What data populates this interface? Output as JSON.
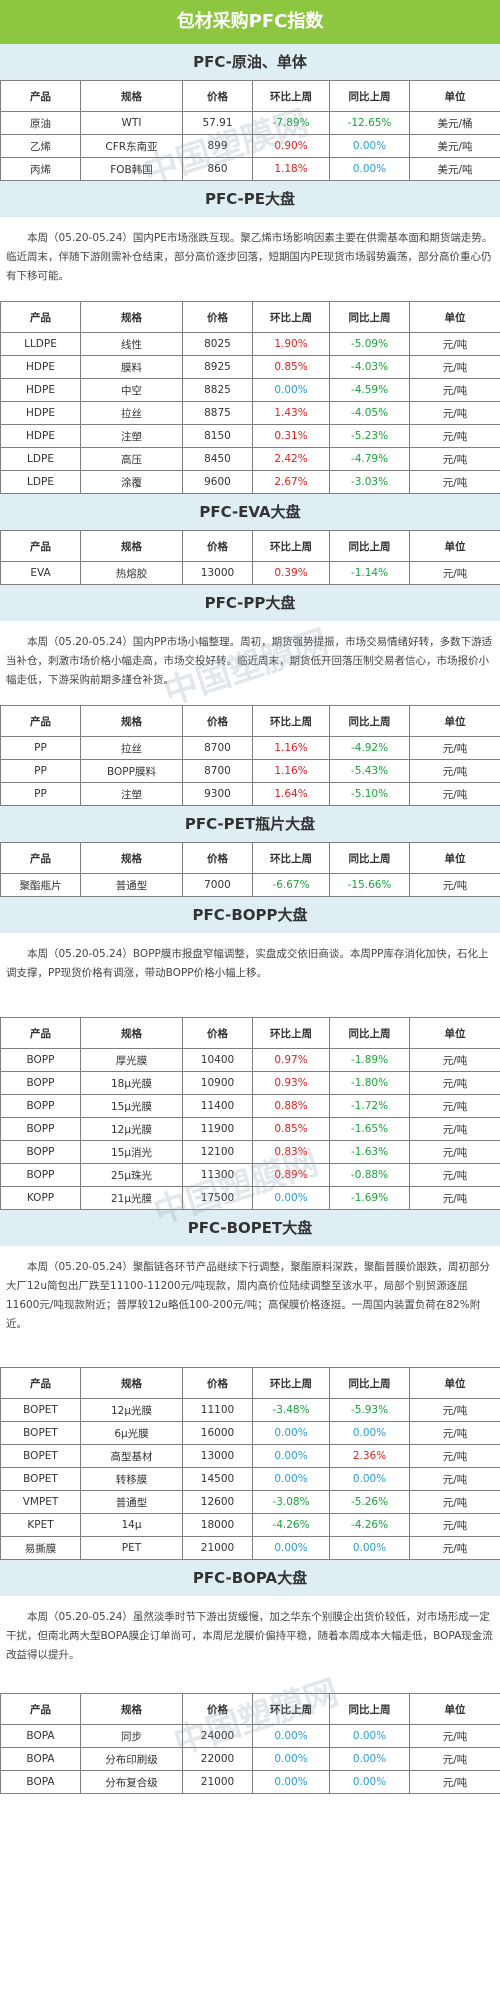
{
  "page_title": "包材采购PFC指数",
  "header": [
    "产品",
    "规格",
    "价格",
    "环比上周",
    "同比上周",
    "单位"
  ],
  "watermark": "中国塑膜网",
  "sections": [
    {
      "title": "PFC-原油、单体",
      "rows": [
        [
          "原油",
          "WTI",
          "57.91",
          "-7.89%",
          "-12.65%",
          "美元/桶"
        ],
        [
          "乙烯",
          "CFR东南亚",
          "899",
          "0.90%",
          "0.00%",
          "美元/吨"
        ],
        [
          "丙烯",
          "FOB韩国",
          "860",
          "1.18%",
          "0.00%",
          "美元/吨"
        ]
      ]
    },
    {
      "title": "PFC-PE大盘",
      "para": "本周（05.20-05.24）国内PE市场涨跌互现。聚乙烯市场影响因素主要在供需基本面和期货端走势。临近周末，伴随下游刚需补仓结束，部分高价逐步回落，短期国内PE现货市场弱势震荡，部分高价重心仍有下移可能。",
      "rows": [
        [
          "LLDPE",
          "线性",
          "8025",
          "1.90%",
          "-5.09%",
          "元/吨"
        ],
        [
          "HDPE",
          "膜料",
          "8925",
          "0.85%",
          "-4.03%",
          "元/吨"
        ],
        [
          "HDPE",
          "中空",
          "8825",
          "0.00%",
          "-4.59%",
          "元/吨"
        ],
        [
          "HDPE",
          "拉丝",
          "8875",
          "1.43%",
          "-4.05%",
          "元/吨"
        ],
        [
          "HDPE",
          "注塑",
          "8150",
          "0.31%",
          "-5.23%",
          "元/吨"
        ],
        [
          "LDPE",
          "高压",
          "8450",
          "2.42%",
          "-4.79%",
          "元/吨"
        ],
        [
          "LDPE",
          "涂覆",
          "9600",
          "2.67%",
          "-3.03%",
          "元/吨"
        ]
      ]
    },
    {
      "title": "PFC-EVA大盘",
      "rows": [
        [
          "EVA",
          "热熔胶",
          "13000",
          "0.39%",
          "-1.14%",
          "元/吨"
        ]
      ]
    },
    {
      "title": "PFC-PP大盘",
      "para": "本周（05.20-05.24）国内PP市场小幅整理。周初，期货强势提振，市场交易情绪好转，多数下游适当补仓，刺激市场价格小幅走高，市场交投好转。临近周末，期货低开回落压制交易者信心，市场报价小幅走低，下游采购前期多謹仓补货。",
      "rows": [
        [
          "PP",
          "拉丝",
          "8700",
          "1.16%",
          "-4.92%",
          "元/吨"
        ],
        [
          "PP",
          "BOPP膜料",
          "8700",
          "1.16%",
          "-5.43%",
          "元/吨"
        ],
        [
          "PP",
          "注塑",
          "9300",
          "1.64%",
          "-5.10%",
          "元/吨"
        ]
      ]
    },
    {
      "title": "PFC-PET瓶片大盘",
      "rows": [
        [
          "聚酯瓶片",
          "普通型",
          "7000",
          "-6.67%",
          "-15.66%",
          "元/吨"
        ]
      ]
    },
    {
      "title": "PFC-BOPP大盘",
      "para": "本周（05.20-05.24）BOPP膜市报盘窄幅调整，实盘成交依旧商谈。本周PP库存消化加快，石化上调支撑，PP现货价格有调涨，带动BOPP价格小幅上移。",
      "rows": [
        [
          "BOPP",
          "厚光膜",
          "10400",
          "0.97%",
          "-1.89%",
          "元/吨"
        ],
        [
          "BOPP",
          "18μ光膜",
          "10900",
          "0.93%",
          "-1.80%",
          "元/吨"
        ],
        [
          "BOPP",
          "15μ光膜",
          "11400",
          "0.88%",
          "-1.72%",
          "元/吨"
        ],
        [
          "BOPP",
          "12μ光膜",
          "11900",
          "0.85%",
          "-1.65%",
          "元/吨"
        ],
        [
          "BOPP",
          "15μ消光",
          "12100",
          "0.83%",
          "-1.63%",
          "元/吨"
        ],
        [
          "BOPP",
          "25μ珠光",
          "11300",
          "0.89%",
          "-0.88%",
          "元/吨"
        ],
        [
          "KOPP",
          "21μ光膜",
          "17500",
          "0.00%",
          "-1.69%",
          "元/吨"
        ]
      ]
    },
    {
      "title": "PFC-BOPET大盘",
      "para": "本周（05.20-05.24）聚酯链各环节产品继续下行调整，聚酯原料深跌，聚酯普膜价跟跌，周初部分大厂12u简包出厂跌至11100-11200元/吨现款，周内高价位陆续调整至该水平，局部个别贸源逐屈11600元/吨现款附近；普厚较12u略低100-200元/吨；高保膜价格逐挺。一周国内装置负荷在82%附近。",
      "rows": [
        [
          "BOPET",
          "12μ光膜",
          "11100",
          "-3.48%",
          "-5.93%",
          "元/吨"
        ],
        [
          "BOPET",
          "6μ光膜",
          "16000",
          "0.00%",
          "0.00%",
          "元/吨"
        ],
        [
          "BOPET",
          "高型基材",
          "13000",
          "0.00%",
          "2.36%",
          "元/吨"
        ],
        [
          "BOPET",
          "转移膜",
          "14500",
          "0.00%",
          "0.00%",
          "元/吨"
        ],
        [
          "VMPET",
          "普通型",
          "12600",
          "-3.08%",
          "-5.26%",
          "元/吨"
        ],
        [
          "KPET",
          "14μ",
          "18000",
          "-4.26%",
          "-4.26%",
          "元/吨"
        ],
        [
          "易撕膜",
          "PET",
          "21000",
          "0.00%",
          "0.00%",
          "元/吨"
        ]
      ]
    },
    {
      "title": "PFC-BOPA大盘",
      "para": "本周（05.20-05.24）虽然淡季时节下游出货缓慢，加之华东个别膜企出货价较低，对市场形成一定干扰，但南北两大型BOPA膜企订单尚可，本周尼龙膜价偏持平稳，随着本周成本大幅走低，BOPA现金流改益得以提升。",
      "rows": [
        [
          "BOPA",
          "同步",
          "24000",
          "0.00%",
          "0.00%",
          "元/吨"
        ],
        [
          "BOPA",
          "分布印刷级",
          "22000",
          "0.00%",
          "0.00%",
          "元/吨"
        ],
        [
          "BOPA",
          "分布复合级",
          "21000",
          "0.00%",
          "0.00%",
          "元/吨"
        ]
      ]
    }
  ]
}
